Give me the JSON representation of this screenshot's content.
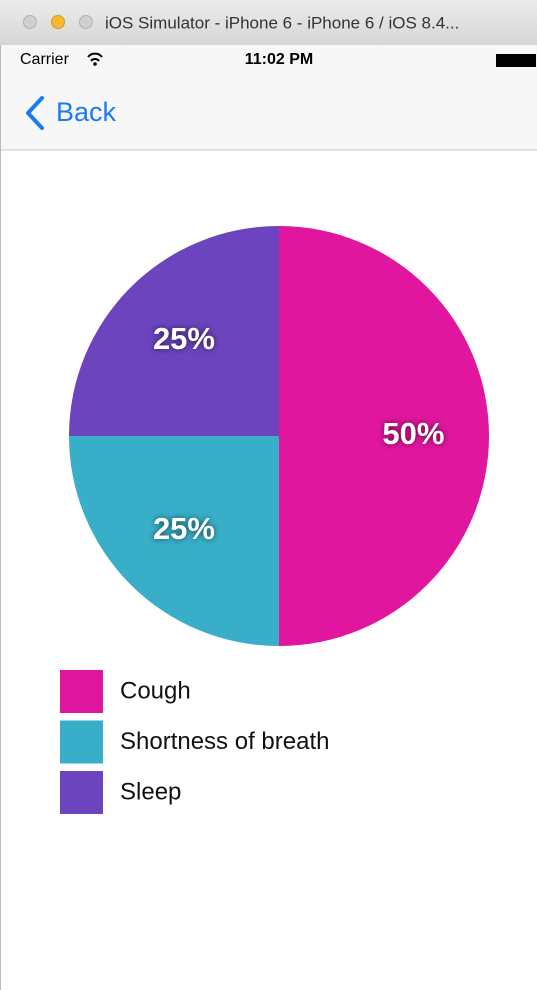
{
  "window": {
    "title": "iOS Simulator - iPhone 6 - iPhone 6 / iOS 8.4..."
  },
  "status": {
    "carrier": "Carrier",
    "time": "11:02 PM"
  },
  "nav": {
    "back": "Back"
  },
  "chart_data": {
    "type": "pie",
    "categories": [
      "Cough",
      "Shortness of breath",
      "Sleep"
    ],
    "values": [
      50,
      25,
      25
    ],
    "value_labels": [
      "50%",
      "25%",
      "25%"
    ],
    "colors": [
      "#e0169f",
      "#38aec8",
      "#6b44be"
    ],
    "legend": "bottom-left"
  }
}
